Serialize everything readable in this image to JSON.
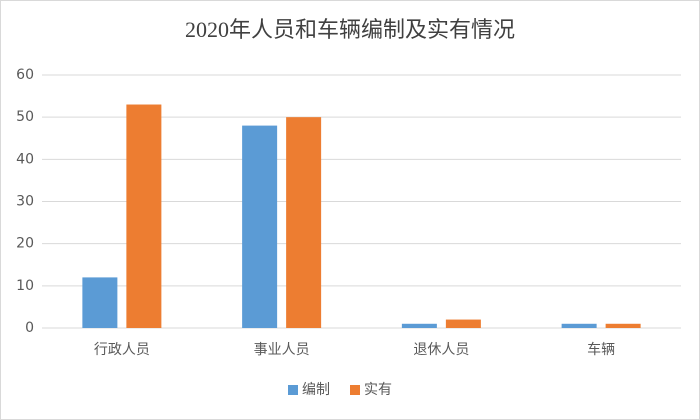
{
  "chart_data": {
    "type": "bar",
    "title": "2020年人员和车辆编制及实有情况",
    "categories": [
      "行政人员",
      "事业人员",
      "退休人员",
      "车辆"
    ],
    "series": [
      {
        "name": "编制",
        "color": "#5b9bd5",
        "values": [
          12,
          48,
          1,
          1
        ]
      },
      {
        "name": "实有",
        "color": "#ed7d31",
        "values": [
          53,
          50,
          2,
          1
        ]
      }
    ],
    "ylim": [
      0,
      60
    ],
    "yticks": [
      0,
      10,
      20,
      30,
      40,
      50,
      60
    ],
    "grid": true,
    "legend": "bottom"
  }
}
